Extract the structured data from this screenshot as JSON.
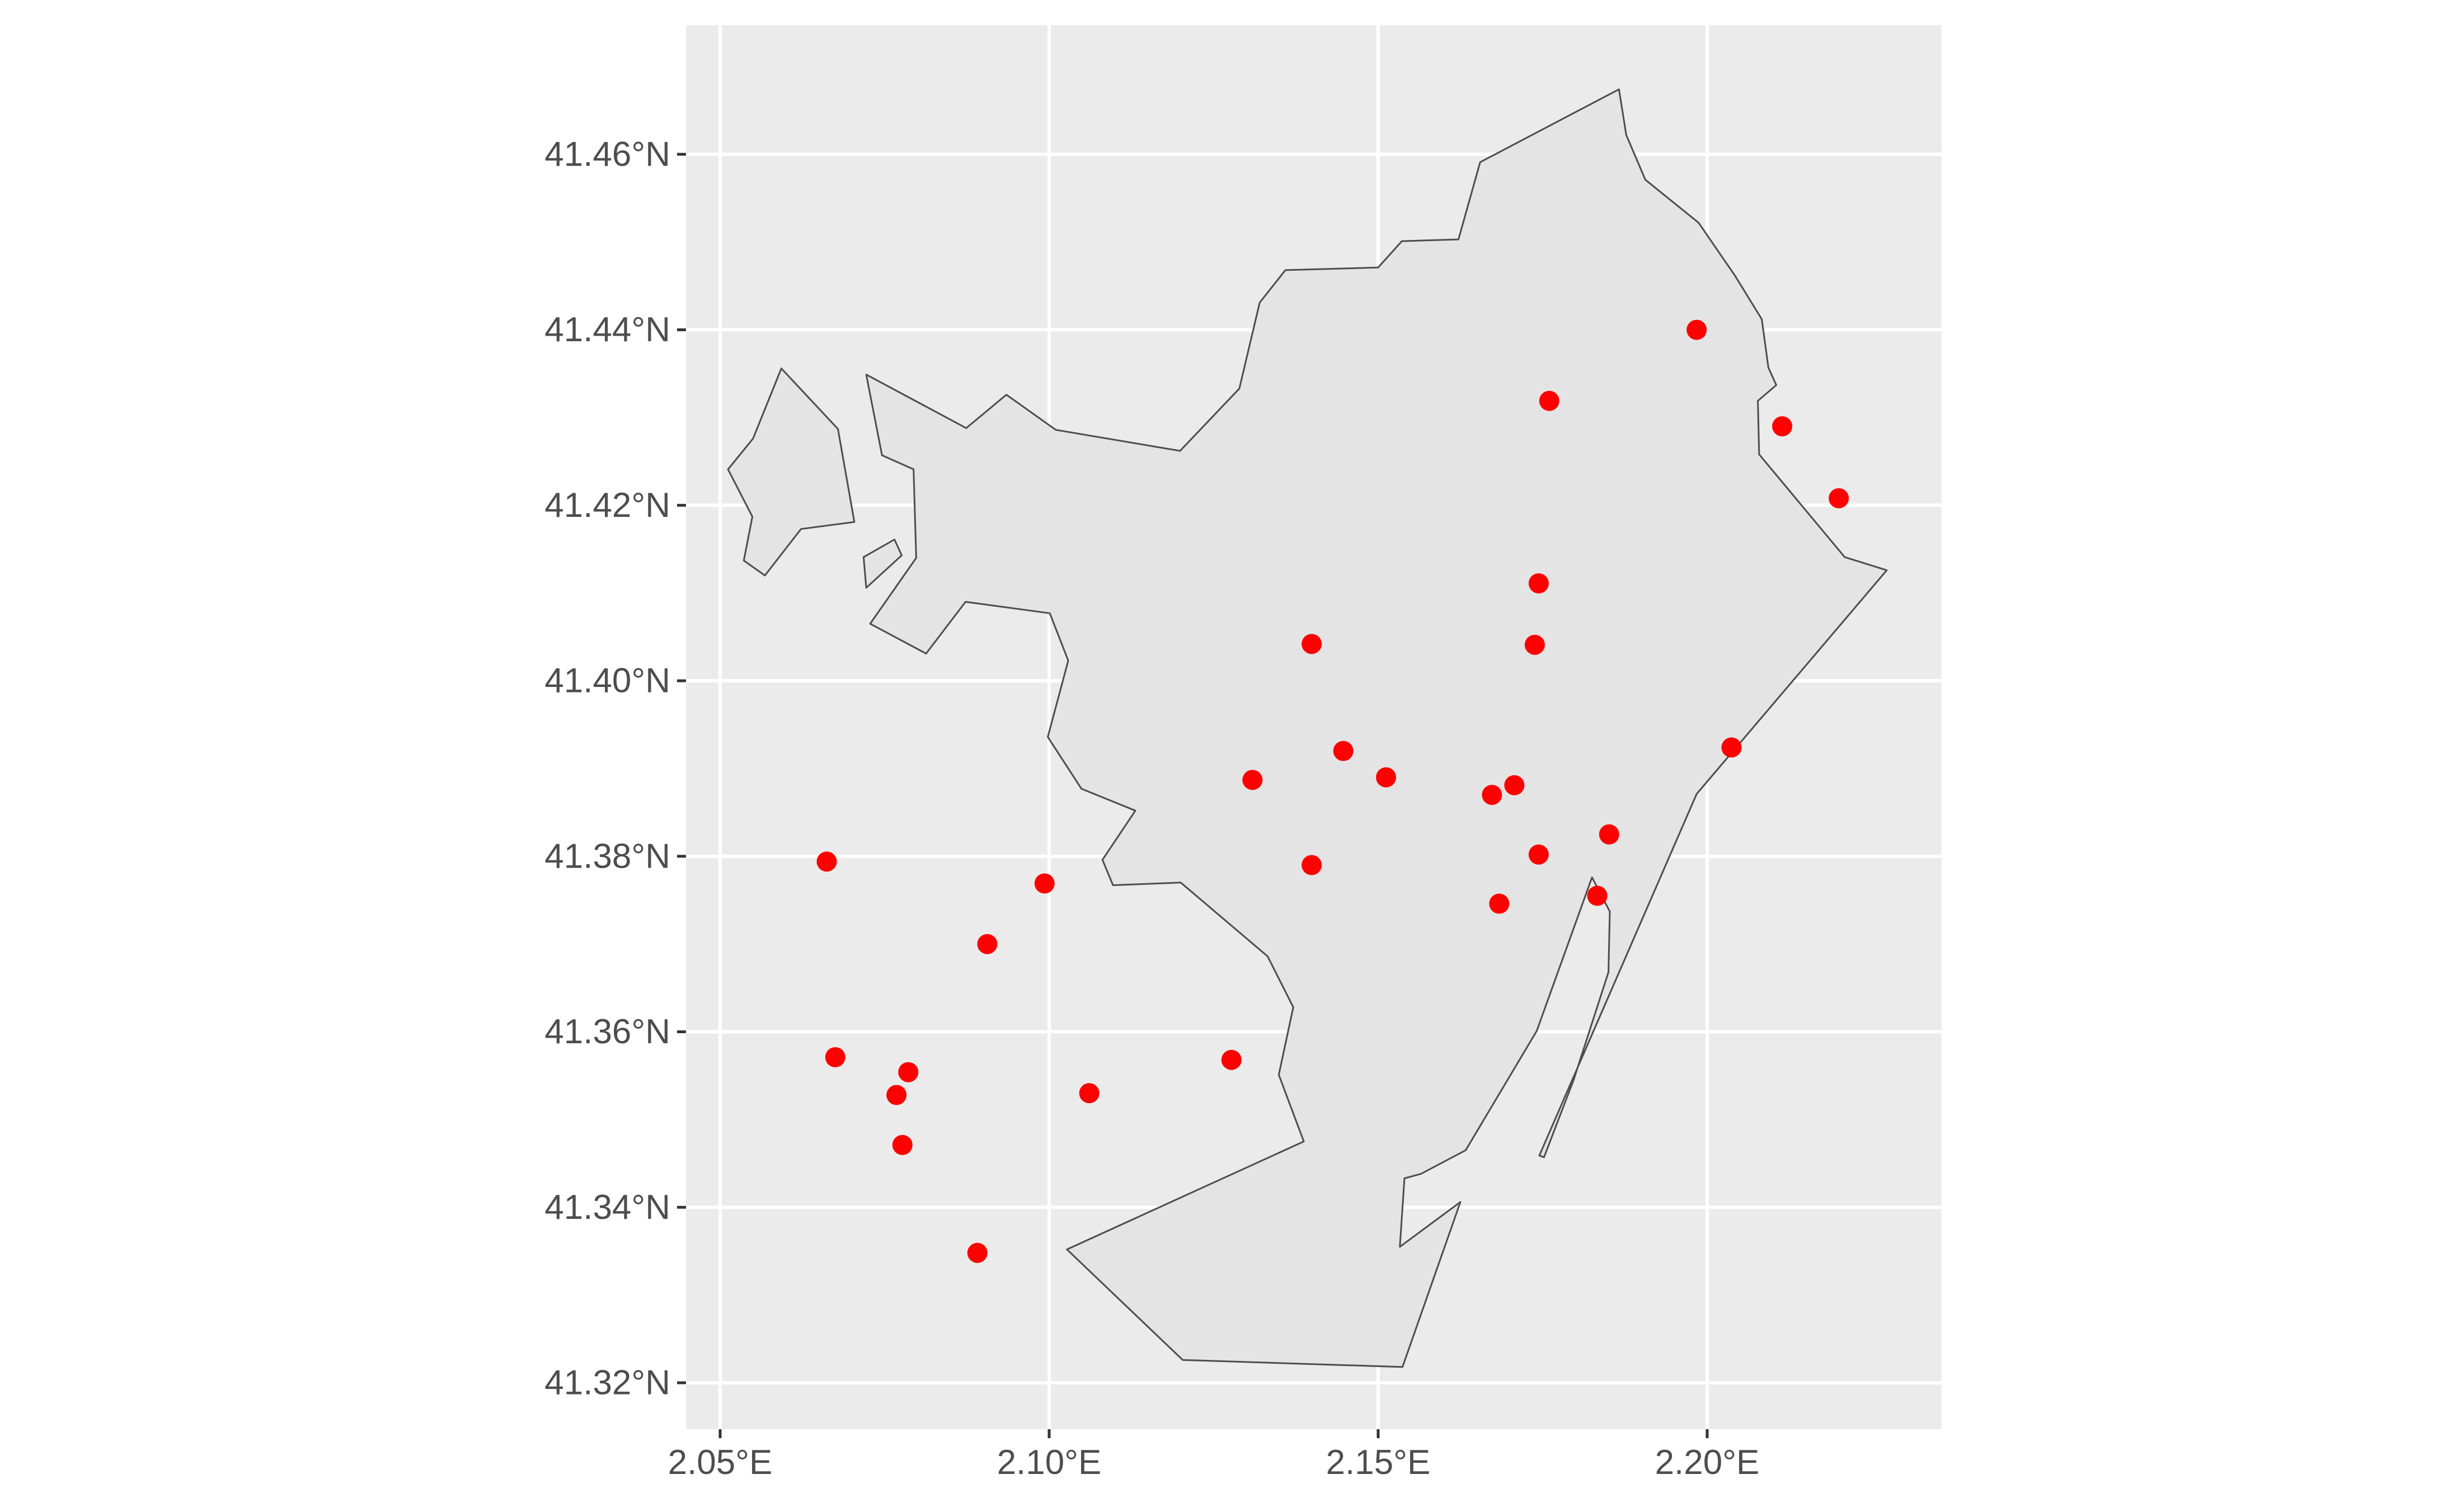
{
  "chart_data": {
    "type": "scatter",
    "title": "",
    "xlabel": "",
    "ylabel": "",
    "xlim": [
      2.05,
      2.23
    ],
    "ylim": [
      41.32,
      41.467
    ],
    "x_ticks": [
      {
        "value": 2.05,
        "label": "2.05°E"
      },
      {
        "value": 2.1,
        "label": "2.10°E"
      },
      {
        "value": 2.15,
        "label": "2.15°E"
      },
      {
        "value": 2.2,
        "label": "2.20°E"
      }
    ],
    "y_ticks": [
      {
        "value": 41.32,
        "label": "41.32°N"
      },
      {
        "value": 41.34,
        "label": "41.34°N"
      },
      {
        "value": 41.36,
        "label": "41.36°N"
      },
      {
        "value": 41.38,
        "label": "41.38°N"
      },
      {
        "value": 41.4,
        "label": "41.40°N"
      },
      {
        "value": 41.42,
        "label": "41.42°N"
      },
      {
        "value": 41.44,
        "label": "41.44°N"
      },
      {
        "value": 41.46,
        "label": "41.46°N"
      }
    ],
    "grid": true,
    "colors": {
      "panel_background": "#ebebeb",
      "grid_line": "#ffffff",
      "polygon_fill": "#e4e4e4",
      "polygon_stroke": "#4d4d4d",
      "point_color": "#ff0000",
      "tick_text": "#4d4d4d"
    },
    "boundary_polygons": [
      {
        "name": "main",
        "coords": [
          [
            2.1866,
            41.4674
          ],
          [
            2.1877,
            41.4622
          ],
          [
            2.1906,
            41.4571
          ],
          [
            2.1987,
            41.4522
          ],
          [
            2.2042,
            41.4462
          ],
          [
            2.2083,
            41.4412
          ],
          [
            2.2093,
            41.4357
          ],
          [
            2.2105,
            41.4337
          ],
          [
            2.2077,
            41.4319
          ],
          [
            2.2079,
            41.4258
          ],
          [
            2.2209,
            41.4141
          ],
          [
            2.2273,
            41.4126
          ],
          [
            2.1984,
            41.3871
          ],
          [
            2.1745,
            41.3459
          ],
          [
            2.1752,
            41.3457
          ],
          [
            2.1797,
            41.3545
          ],
          [
            2.185,
            41.3668
          ],
          [
            2.1852,
            41.3737
          ],
          [
            2.1825,
            41.3776
          ],
          [
            2.1741,
            41.3601
          ],
          [
            2.1633,
            41.3465
          ],
          [
            2.1565,
            41.3438
          ],
          [
            2.154,
            41.3433
          ],
          [
            2.1533,
            41.3355
          ],
          [
            2.1625,
            41.3406
          ],
          [
            2.1537,
            41.3218
          ],
          [
            2.1203,
            41.3226
          ],
          [
            2.1027,
            41.3352
          ],
          [
            2.1387,
            41.3475
          ],
          [
            2.1349,
            41.3551
          ],
          [
            2.1371,
            41.3628
          ],
          [
            2.1332,
            41.3686
          ],
          [
            2.12,
            41.377
          ],
          [
            2.1097,
            41.3767
          ],
          [
            2.1081,
            41.3796
          ],
          [
            2.1131,
            41.3852
          ],
          [
            2.1049,
            41.3877
          ],
          [
            2.0998,
            41.3936
          ],
          [
            2.1029,
            41.4023
          ],
          [
            2.1001,
            41.4077
          ],
          [
            2.0873,
            41.409
          ],
          [
            2.0813,
            41.4031
          ],
          [
            2.0728,
            41.4065
          ],
          [
            2.0798,
            41.414
          ],
          [
            2.0794,
            41.4241
          ],
          [
            2.0746,
            41.4257
          ],
          [
            2.0722,
            41.4349
          ],
          [
            2.0874,
            41.4288
          ],
          [
            2.0935,
            41.4326
          ],
          [
            2.101,
            41.4286
          ],
          [
            2.1199,
            41.4262
          ],
          [
            2.1289,
            41.4333
          ],
          [
            2.132,
            41.4431
          ],
          [
            2.1359,
            41.4468
          ],
          [
            2.15,
            41.4471
          ],
          [
            2.1536,
            41.4501
          ],
          [
            2.1622,
            41.4503
          ],
          [
            2.1655,
            41.4591
          ],
          [
            2.1866,
            41.4674
          ]
        ]
      },
      {
        "name": "west-fragment",
        "coords": [
          [
            2.0593,
            41.4356
          ],
          [
            2.055,
            41.4276
          ],
          [
            2.0512,
            41.4241
          ],
          [
            2.0549,
            41.4187
          ],
          [
            2.0536,
            41.4137
          ],
          [
            2.0568,
            41.412
          ],
          [
            2.0623,
            41.4173
          ],
          [
            2.0704,
            41.4181
          ],
          [
            2.0679,
            41.4287
          ],
          [
            2.0593,
            41.4356
          ]
        ]
      },
      {
        "name": "small-enclave",
        "coords": [
          [
            2.0765,
            41.4161
          ],
          [
            2.0776,
            41.4143
          ],
          [
            2.0722,
            41.4106
          ],
          [
            2.0718,
            41.4141
          ],
          [
            2.0765,
            41.4161
          ]
        ]
      }
    ],
    "points": [
      {
        "x": 2.1984,
        "y": 41.44
      },
      {
        "x": 2.176,
        "y": 41.4319
      },
      {
        "x": 2.2114,
        "y": 41.429
      },
      {
        "x": 2.22,
        "y": 41.4208
      },
      {
        "x": 2.1744,
        "y": 41.4111
      },
      {
        "x": 2.1399,
        "y": 41.4042
      },
      {
        "x": 2.1738,
        "y": 41.4041
      },
      {
        "x": 2.2037,
        "y": 41.3924
      },
      {
        "x": 2.1447,
        "y": 41.392
      },
      {
        "x": 2.1512,
        "y": 41.389
      },
      {
        "x": 2.1309,
        "y": 41.3887
      },
      {
        "x": 2.1707,
        "y": 41.3881
      },
      {
        "x": 2.1673,
        "y": 41.387
      },
      {
        "x": 2.1851,
        "y": 41.3825
      },
      {
        "x": 2.1744,
        "y": 41.3802
      },
      {
        "x": 2.0662,
        "y": 41.3794
      },
      {
        "x": 2.1399,
        "y": 41.379
      },
      {
        "x": 2.0993,
        "y": 41.3769
      },
      {
        "x": 2.1833,
        "y": 41.3755
      },
      {
        "x": 2.1684,
        "y": 41.3746
      },
      {
        "x": 2.0906,
        "y": 41.37
      },
      {
        "x": 2.0675,
        "y": 41.3571
      },
      {
        "x": 2.1277,
        "y": 41.3568
      },
      {
        "x": 2.0786,
        "y": 41.3554
      },
      {
        "x": 2.0768,
        "y": 41.3528
      },
      {
        "x": 2.1061,
        "y": 41.353
      },
      {
        "x": 2.0777,
        "y": 41.3471
      },
      {
        "x": 2.0891,
        "y": 41.3348
      }
    ]
  }
}
